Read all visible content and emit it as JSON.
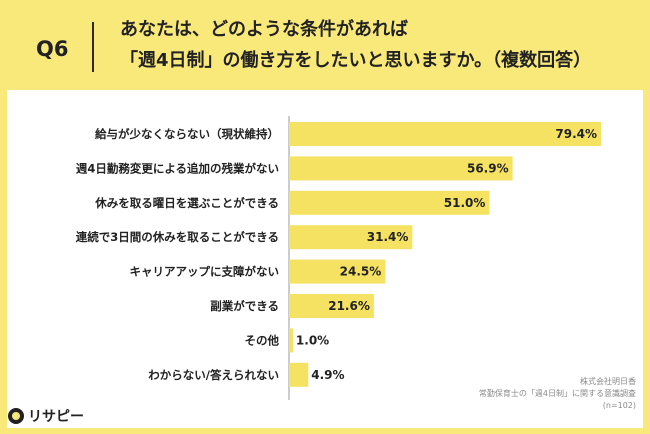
{
  "header": {
    "question_label": "Q6",
    "title_line1": "あなたは、どのような条件があれば",
    "title_line2": "「週4日制」の働き方をしたいと思いますか。（複数回答）"
  },
  "chart_data": {
    "type": "bar",
    "orientation": "horizontal",
    "categories": [
      "給与が少なくならない（現状維持）",
      "週4日勤務変更による追加の残業がない",
      "休みを取る曜日を選ぶことができる",
      "連続で3日間の休みを取ることができる",
      "キャリアアップに支障がない",
      "副業ができる",
      "その他",
      "わからない/答えられない"
    ],
    "values": [
      79.4,
      56.9,
      51.0,
      31.4,
      24.5,
      21.6,
      1.0,
      4.9
    ],
    "value_labels": [
      "79.4%",
      "56.9%",
      "51.0%",
      "31.4%",
      "24.5%",
      "21.6%",
      "1.0%",
      "4.9%"
    ],
    "xlim": [
      0,
      100
    ],
    "bar_color": "#F6E262",
    "axis_color": "#999999"
  },
  "credit": {
    "company": "株式会社明日香",
    "survey": "常勤保育士の「週4日制」に関する意識調査",
    "sample": "(n=102)"
  },
  "logo": {
    "text": "リサピー"
  }
}
